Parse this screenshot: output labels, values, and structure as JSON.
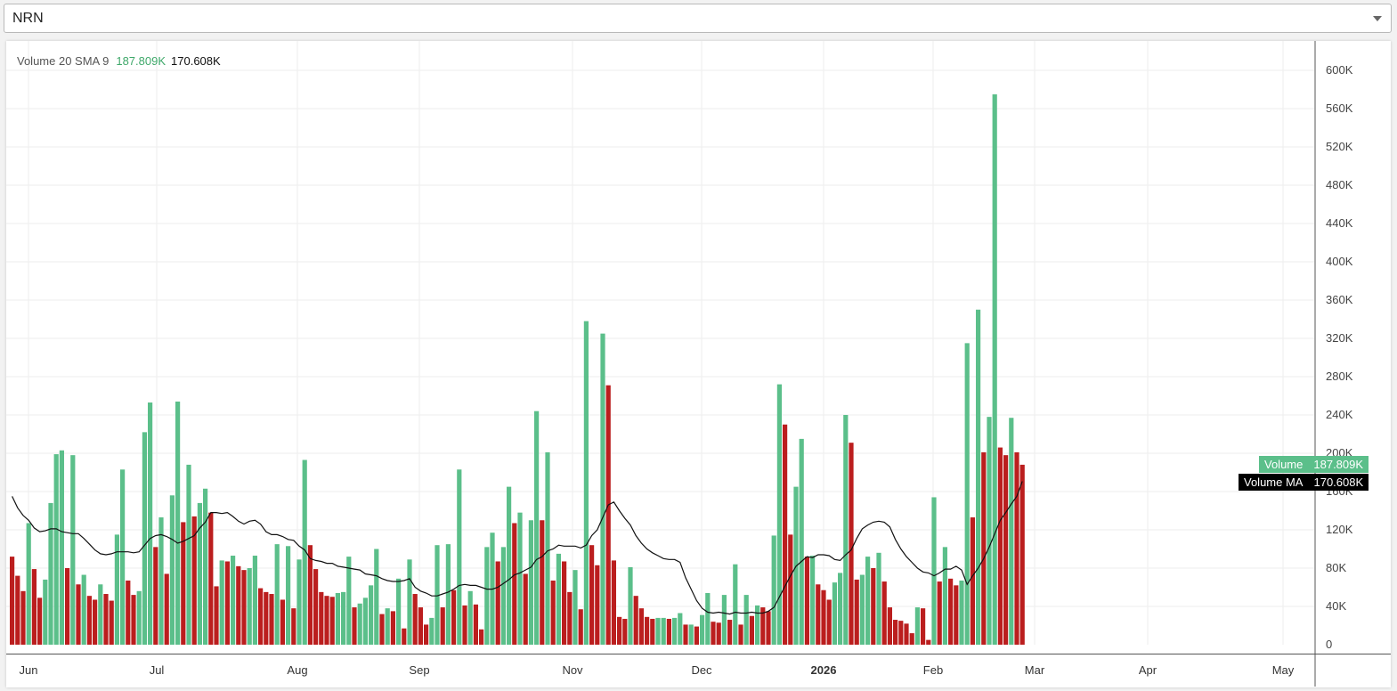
{
  "selector": {
    "value": "NRN"
  },
  "legend": {
    "indicator": "Volume 20 SMA 9",
    "volume_value": "187.809K",
    "ma_value": "170.608K"
  },
  "tags": {
    "volume_label": "Volume",
    "volume_value": "187.809K",
    "ma_label": "Volume MA",
    "ma_value": "170.608K"
  },
  "colors": {
    "up": "#5bbf8a",
    "down": "#bb1e1e",
    "ma_line": "#111111",
    "grid": "#eeeeee"
  },
  "chart_data": {
    "type": "bar",
    "title": "",
    "xlabel": "",
    "ylabel": "",
    "x_ticks": [
      "Jun",
      "Jul",
      "Aug",
      "Sep",
      "Nov",
      "Dec",
      "2026",
      "Feb",
      "Mar",
      "Apr",
      "May"
    ],
    "y_ticks": [
      "0",
      "40K",
      "80K",
      "120K",
      "160K",
      "200K",
      "240K",
      "280K",
      "320K",
      "360K",
      "400K",
      "440K",
      "480K",
      "520K",
      "560K",
      "600K"
    ],
    "ylim": [
      0,
      600000
    ],
    "grid": true,
    "series": [
      {
        "name": "Volume",
        "type": "bar",
        "values": [
          92000,
          72000,
          56000,
          127000,
          79000,
          49000,
          68000,
          148000,
          199000,
          203000,
          80000,
          198000,
          63000,
          73000,
          51000,
          47000,
          63000,
          53000,
          46000,
          115000,
          183000,
          67000,
          52000,
          56000,
          222000,
          253000,
          102000,
          133000,
          74000,
          156000,
          254000,
          128000,
          188000,
          134000,
          148000,
          163000,
          138000,
          61000,
          88000,
          87000,
          93000,
          82000,
          78000,
          80000,
          93000,
          59000,
          55000,
          53000,
          105000,
          47000,
          103000,
          38000,
          89000,
          193000,
          104000,
          79000,
          55000,
          51000,
          50000,
          54000,
          55000,
          92000,
          39000,
          43000,
          49000,
          62000,
          100000,
          32000,
          38000,
          35000,
          69000,
          17000,
          89000,
          53000,
          39000,
          21000,
          28000,
          104000,
          39000,
          105000,
          57000,
          183000,
          41000,
          56000,
          42000,
          16000,
          102000,
          117000,
          87000,
          102000,
          165000,
          127000,
          138000,
          74000,
          130000,
          244000,
          130000,
          201000,
          67000,
          95000,
          87000,
          55000,
          78000,
          37000,
          338000,
          104000,
          83000,
          325000,
          271000,
          88000,
          29000,
          27000,
          81000,
          51000,
          38000,
          29000,
          27000,
          28000,
          28000,
          27000,
          28000,
          33000,
          21000,
          21000,
          19000,
          31000,
          54000,
          24000,
          23000,
          52000,
          26000,
          84000,
          21000,
          52000,
          30000,
          41000,
          39000,
          35000,
          114000,
          272000,
          230000,
          115000,
          165000,
          215000,
          92000,
          93000,
          63000,
          57000,
          47000,
          65000,
          75000,
          240000,
          211000,
          68000,
          73000,
          92000,
          80000,
          96000,
          66000,
          39000,
          26000,
          25000,
          22000,
          12000,
          39000,
          38000,
          5000,
          154000,
          66000,
          102000,
          69000,
          62000,
          67000,
          315000,
          133000,
          350000,
          201000,
          238000,
          575000,
          206000,
          198000,
          237000,
          201000,
          188000
        ]
      },
      {
        "name": "Volume MA",
        "type": "line",
        "values": [
          155000,
          143000,
          135000,
          130000,
          122000,
          118000,
          119000,
          121000,
          121000,
          118000,
          117000,
          116000,
          116000,
          111000,
          105000,
          99000,
          95000,
          94000,
          95000,
          97000,
          97000,
          97000,
          96000,
          97000,
          104000,
          111000,
          114000,
          115000,
          113000,
          110000,
          106000,
          108000,
          111000,
          114000,
          122000,
          128000,
          138000,
          138000,
          137000,
          138000,
          134000,
          129000,
          126000,
          129000,
          130000,
          126000,
          118000,
          115000,
          115000,
          113000,
          110000,
          109000,
          103000,
          99000,
          90000,
          88000,
          87000,
          85000,
          85000,
          82000,
          81000,
          80000,
          79000,
          78000,
          74000,
          73000,
          72000,
          69000,
          67000,
          66000,
          66000,
          67000,
          69000,
          60000,
          56000,
          54000,
          51000,
          51000,
          53000,
          55000,
          58000,
          62000,
          63000,
          62000,
          62000,
          60000,
          58000,
          58000,
          60000,
          64000,
          68000,
          73000,
          75000,
          78000,
          81000,
          89000,
          92000,
          98000,
          100000,
          104000,
          103000,
          103000,
          103000,
          101000,
          104000,
          114000,
          120000,
          133000,
          146000,
          149000,
          140000,
          132000,
          125000,
          114000,
          106000,
          100000,
          96000,
          93000,
          90000,
          89000,
          89000,
          86000,
          70000,
          58000,
          46000,
          38000,
          34000,
          33000,
          34000,
          33000,
          32000,
          34000,
          33000,
          33000,
          34000,
          33000,
          33000,
          35000,
          39000,
          50000,
          61000,
          72000,
          82000,
          87000,
          92000,
          91000,
          94000,
          94000,
          93000,
          89000,
          88000,
          94000,
          99000,
          111000,
          121000,
          125000,
          128000,
          129000,
          128000,
          123000,
          110000,
          100000,
          92000,
          86000,
          80000,
          76000,
          75000,
          72000,
          75000,
          79000,
          79000,
          82000,
          78000,
          63000,
          72000,
          80000,
          90000,
          102000,
          116000,
          130000,
          138000,
          147000,
          155000,
          170608
        ]
      }
    ]
  }
}
